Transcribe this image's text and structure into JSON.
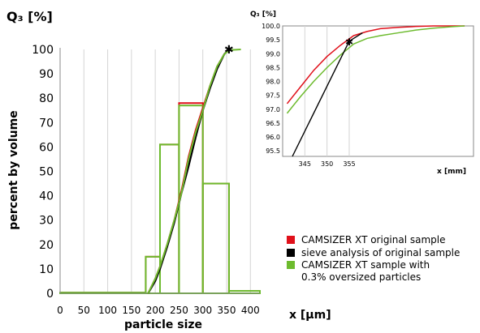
{
  "chart_data": [
    {
      "type": "line",
      "y_title": "Q₃ [%]",
      "ylabel": "percent by volume",
      "xlabel": "particle size",
      "x_unit_label": "x [µm]",
      "xlim": [
        0,
        420
      ],
      "ylim": [
        0,
        100
      ],
      "x_ticks": [
        0,
        50,
        100,
        150,
        200,
        250,
        300,
        350,
        400
      ],
      "y_ticks": [
        0,
        10,
        20,
        30,
        40,
        50,
        60,
        70,
        80,
        90,
        100
      ],
      "grid": "vertical",
      "colors": {
        "red": "#e0101a",
        "black": "#000000",
        "green": "#6dbb2e"
      },
      "histograms": [
        {
          "series": "red",
          "bins": [
            [
              0,
              180,
              0.3
            ],
            [
              180,
              210,
              15
            ],
            [
              210,
              250,
              61
            ],
            [
              250,
              300,
              78
            ],
            [
              300,
              355,
              45
            ],
            [
              355,
              420,
              1
            ]
          ]
        },
        {
          "series": "green",
          "bins": [
            [
              0,
              180,
              0.3
            ],
            [
              180,
              210,
              15
            ],
            [
              210,
              250,
              61
            ],
            [
              250,
              300,
              77
            ],
            [
              300,
              355,
              45
            ],
            [
              355,
              420,
              1
            ]
          ]
        }
      ],
      "series": [
        {
          "name": "CAMSIZER XT original sample",
          "color": "#e0101a",
          "x": [
            185,
            200,
            210,
            225,
            240,
            255,
            270,
            285,
            300,
            315,
            330,
            345,
            355
          ],
          "y": [
            0,
            6,
            11,
            20,
            30,
            42,
            56,
            67,
            76,
            85,
            93,
            98,
            100
          ]
        },
        {
          "name": "sieve analysis of original sample",
          "color": "#000000",
          "x": [
            185,
            200,
            210,
            225,
            240,
            255,
            270,
            285,
            300,
            315,
            330,
            345,
            355
          ],
          "y": [
            0,
            5,
            10,
            19,
            29,
            41,
            52,
            64,
            75,
            84,
            92,
            98,
            100
          ]
        },
        {
          "name": "CAMSIZER XT sample with 0.3% oversized particles",
          "color": "#6dbb2e",
          "x": [
            185,
            200,
            210,
            225,
            240,
            255,
            270,
            285,
            300,
            315,
            330,
            345,
            355,
            380
          ],
          "y": [
            0,
            6,
            11,
            20,
            30,
            41,
            55,
            66,
            75,
            85,
            93,
            98,
            99.7,
            100
          ]
        }
      ],
      "marker": {
        "x": 355,
        "y": 100,
        "symbol": "✱"
      }
    },
    {
      "type": "line",
      "title": "Q₃ [%]",
      "xlabel": "x [mm]",
      "xlim": [
        340,
        383
      ],
      "ylim": [
        95.3,
        100
      ],
      "x_ticks": [
        345,
        350,
        355
      ],
      "y_ticks": [
        "95.5",
        "96.0",
        "96.5",
        "97.0",
        "97.5",
        "98.0",
        "98.5",
        "99.0",
        "99.5",
        "100.0"
      ],
      "series": [
        {
          "name": "CAMSIZER XT original sample",
          "color": "#e0101a",
          "x": [
            341,
            344,
            347,
            350,
            353,
            356,
            359,
            362,
            366,
            370,
            374,
            378,
            381
          ],
          "y": [
            97.2,
            97.8,
            98.4,
            98.9,
            99.3,
            99.65,
            99.8,
            99.9,
            99.95,
            99.98,
            100.0,
            100.0,
            100.0
          ]
        },
        {
          "name": "CAMSIZER XT sample with 0.3% oversized particles",
          "color": "#6dbb2e",
          "x": [
            341,
            344,
            347,
            350,
            353,
            356,
            359,
            362,
            366,
            370,
            374,
            378,
            381
          ],
          "y": [
            96.85,
            97.45,
            98.0,
            98.5,
            98.95,
            99.35,
            99.55,
            99.65,
            99.75,
            99.85,
            99.92,
            99.97,
            100.0
          ]
        },
        {
          "name": "sieve analysis of original sample",
          "color": "#000000",
          "x": [
            342.2,
            355,
            358
          ],
          "y": [
            95.3,
            99.45,
            99.75
          ]
        }
      ],
      "marker": {
        "x": 355,
        "y": 99.45,
        "symbol": "✱"
      }
    }
  ],
  "legend": [
    {
      "label": "CAMSIZER XT original sample",
      "color": "#e0101a"
    },
    {
      "label": "sieve analysis of original sample",
      "color": "#000000"
    },
    {
      "label": "CAMSIZER XT sample with",
      "label_line2": "0.3% oversized particles",
      "color": "#6dbb2e"
    }
  ]
}
